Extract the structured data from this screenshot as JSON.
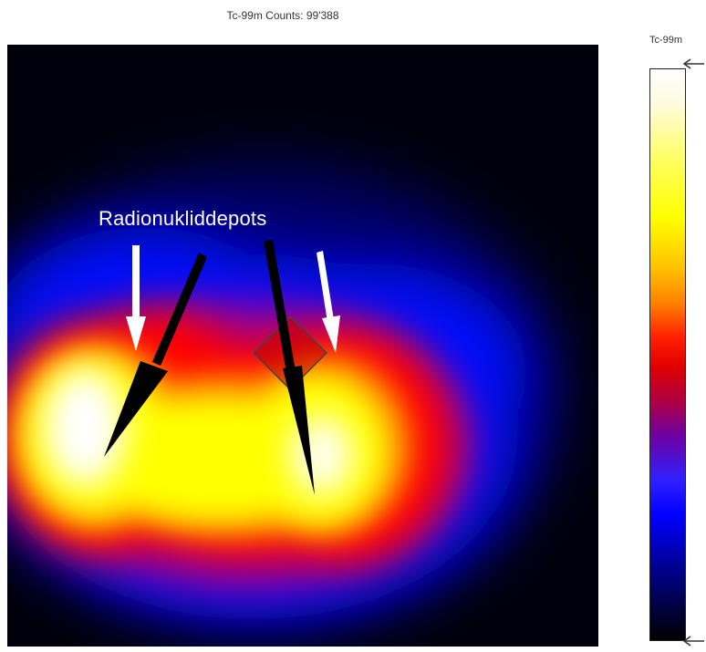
{
  "header": {
    "title": "Tc-99m Counts: 99'388"
  },
  "scan": {
    "annotation": "Radionukliddepots",
    "colormap": [
      "#000000",
      "#0000ff",
      "#ff0000",
      "#ffff00",
      "#ffffff"
    ],
    "markers": {
      "white_arrows": 2,
      "black_arrows": 2,
      "roi": "diamond"
    }
  },
  "colorbar": {
    "label": "Tc-99m"
  }
}
